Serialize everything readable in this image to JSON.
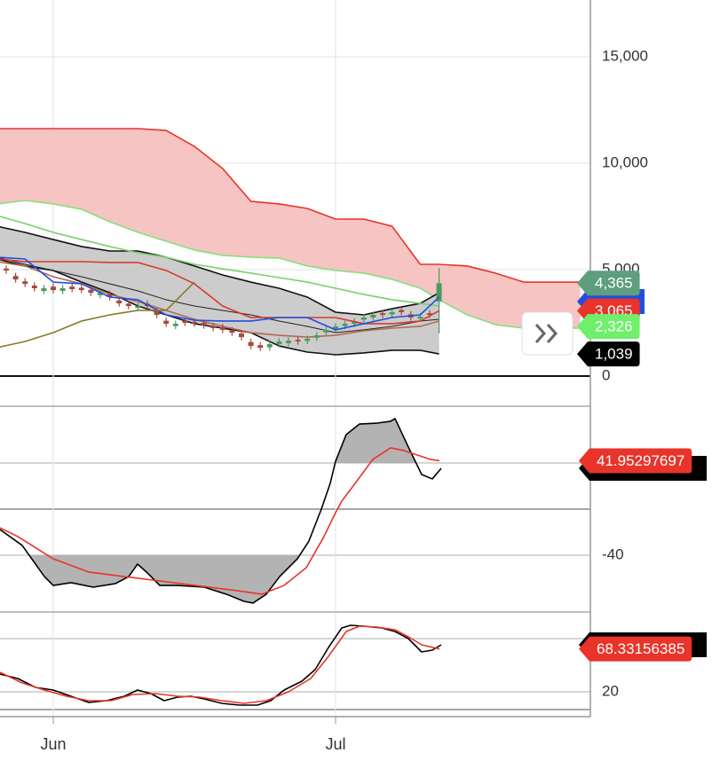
{
  "chart_data": [
    {
      "type": "candlestick",
      "xlim": [
        -5.66,
        57.08
      ],
      "ylim": [
        -1416.7,
        17666.7
      ],
      "yticks": [
        0,
        {
          "value": 5000,
          "label": "5,000"
        },
        {
          "value": 10000,
          "label": "10,000"
        },
        {
          "value": 15000,
          "label": "15,000"
        }
      ],
      "grid": true,
      "bands": [
        {
          "fill": "#f6c4c2",
          "upper": {
            "color": "#e8342a",
            "x": [
              -6,
              -3,
              0,
              3,
              6,
              9,
              12,
              15,
              18,
              21,
              24,
              27,
              30,
              33,
              36,
              39,
              41,
              44,
              47,
              50,
              53,
              56
            ],
            "values": [
              11625,
              11625,
              11625,
              11625,
              11625,
              11625,
              11540,
              10790,
              9750,
              8210,
              8085,
              7875,
              7375,
              7375,
              7040,
              5250,
              5250,
              5170,
              4835,
              4415,
              4415,
              4415
            ]
          },
          "lower": {
            "color": "#86e07a",
            "x": [
              -6,
              -3,
              0,
              3,
              6,
              9,
              12,
              15,
              18,
              21,
              24,
              27,
              30,
              33,
              36,
              39,
              41,
              44,
              47,
              50,
              53,
              56
            ],
            "values": [
              8085,
              8250,
              8085,
              7835,
              7250,
              6750,
              6335,
              5920,
              5670,
              5585,
              5540,
              5170,
              4960,
              4835,
              4540,
              4125,
              3585,
              2875,
              2415,
              2250,
              2250,
              2250
            ]
          }
        },
        {
          "fill": "#c6c6c6",
          "upper": {
            "color": "#111111",
            "x": [
              -6,
              -3,
              0,
              3,
              6,
              9,
              12,
              15,
              18,
              21,
              24,
              27,
              30,
              33,
              36,
              39,
              41
            ],
            "values": [
              7040,
              6750,
              6415,
              6085,
              5875,
              5875,
              5585,
              5170,
              4750,
              4415,
              4125,
              3710,
              3000,
              2875,
              3165,
              3415,
              3915
            ]
          },
          "lower": {
            "color": "#111111",
            "x": [
              -6,
              -3,
              0,
              3,
              6,
              9,
              12,
              15,
              18,
              21,
              24,
              27,
              30,
              33,
              36,
              39,
              41
            ],
            "values": [
              5500,
              5170,
              4960,
              4415,
              3915,
              3290,
              2875,
              2460,
              2250,
              2040,
              1415,
              1125,
              1000,
              1085,
              1210,
              1210,
              1039
            ]
          }
        }
      ],
      "series": [
        {
          "color": "#7ccf6e",
          "x": [
            -6,
            -3,
            0,
            3,
            6,
            9,
            12,
            15,
            18,
            21,
            24,
            27,
            30,
            33,
            36,
            39,
            41
          ],
          "values": [
            7540,
            7165,
            6750,
            6415,
            6085,
            5790,
            5585,
            5250,
            5040,
            4835,
            4625,
            4415,
            4125,
            3835,
            3585,
            3415,
            3290
          ]
        },
        {
          "color": "#222222",
          "x": [
            -6,
            -3,
            0,
            3,
            6,
            9,
            12,
            15,
            18,
            21,
            24,
            27,
            30,
            33,
            36,
            39,
            41
          ],
          "values": [
            5585,
            5250,
            4960,
            4665,
            4335,
            4000,
            3585,
            3290,
            3085,
            2875,
            2585,
            2335,
            2040,
            2170,
            2335,
            2585,
            2665
          ]
        },
        {
          "color": "#b36a52",
          "x": [
            -6,
            -3,
            0,
            3,
            6,
            9,
            12,
            15,
            18,
            21,
            24,
            27,
            30,
            33,
            36,
            39,
            41
          ],
          "values": [
            5375,
            5170,
            4665,
            4335,
            3835,
            3500,
            3085,
            2665,
            2335,
            2040,
            1915,
            1830,
            1915,
            2125,
            2250,
            2335,
            2585
          ]
        },
        {
          "color": "#d9382c",
          "x": [
            -6,
            -3,
            0,
            3,
            6,
            9,
            12,
            15,
            18,
            21,
            24,
            27,
            30,
            33,
            36,
            39,
            41
          ],
          "values": [
            5500,
            5375,
            5375,
            5375,
            5335,
            5335,
            4960,
            4335,
            3290,
            2750,
            2750,
            2750,
            2750,
            2460,
            2460,
            2585,
            3065
          ]
        },
        {
          "color": "#1f4fe0",
          "x": [
            -6,
            -3,
            0,
            3,
            6,
            9,
            12,
            15,
            18,
            21,
            24,
            27,
            30,
            33,
            36,
            39,
            41
          ],
          "values": [
            5585,
            5500,
            4415,
            4335,
            3710,
            3585,
            2875,
            2625,
            2585,
            2585,
            2750,
            2750,
            2170,
            2460,
            2750,
            2875,
            3710
          ]
        },
        {
          "color": "#8a7a2a",
          "x": [
            -6,
            -3,
            0,
            3,
            6,
            9,
            12,
            15
          ],
          "values": [
            1335,
            1625,
            2040,
            2585,
            2875,
            3085,
            3085,
            4415
          ]
        }
      ],
      "candles": {
        "up_color": "#4d9a5e",
        "down_color": "#a8493a",
        "x": [
          -5,
          -4,
          -3,
          -2,
          -1,
          0,
          1,
          2,
          3,
          4,
          5,
          6,
          7,
          8,
          9,
          10,
          11,
          12,
          13,
          14,
          15,
          16,
          17,
          18,
          19,
          20,
          21,
          22,
          23,
          24,
          25,
          26,
          27,
          28,
          29,
          30,
          31,
          32,
          33,
          34,
          35,
          36,
          37,
          38,
          39,
          40,
          41
        ],
        "open": [
          5050,
          4700,
          4450,
          4250,
          4000,
          4200,
          4000,
          4200,
          4150,
          4050,
          3800,
          3850,
          3550,
          3400,
          3200,
          3400,
          3050,
          2600,
          2350,
          2600,
          2550,
          2500,
          2350,
          2300,
          2150,
          2000,
          1600,
          1450,
          1350,
          1500,
          1550,
          1700,
          1650,
          1800,
          2050,
          2200,
          2350,
          2450,
          2650,
          2750,
          2950,
          2900,
          3100,
          2900,
          2700,
          2950,
          3500
        ],
        "high": [
          5200,
          4850,
          4600,
          4400,
          4275,
          4350,
          4275,
          4350,
          4300,
          4200,
          4065,
          4000,
          3700,
          3550,
          3440,
          3550,
          3200,
          2750,
          2610,
          2750,
          2700,
          2650,
          2500,
          2450,
          2300,
          2150,
          1750,
          1600,
          1650,
          1775,
          1815,
          1850,
          1900,
          2065,
          2320,
          2480,
          2610,
          2730,
          2900,
          3025,
          3100,
          3150,
          3250,
          3050,
          2940,
          3100,
          5080
        ],
        "low": [
          4810,
          4390,
          4180,
          3975,
          3850,
          3890,
          3850,
          3935,
          3890,
          3765,
          3650,
          3560,
          3265,
          3140,
          3050,
          3140,
          2725,
          2310,
          2200,
          2350,
          2310,
          2225,
          2100,
          2020,
          1890,
          1680,
          1265,
          1180,
          1200,
          1350,
          1400,
          1475,
          1500,
          1650,
          1900,
          2050,
          2200,
          2300,
          2500,
          2600,
          2725,
          2750,
          2850,
          2600,
          2550,
          2725,
          2000
        ],
        "close": [
          4960,
          4540,
          4330,
          4125,
          4125,
          4040,
          4125,
          4085,
          4040,
          3915,
          3915,
          3710,
          3415,
          3290,
          3290,
          3290,
          2875,
          2460,
          2460,
          2500,
          2460,
          2375,
          2250,
          2170,
          2040,
          1830,
          1415,
          1330,
          1500,
          1625,
          1665,
          1625,
          1750,
          1915,
          2170,
          2330,
          2460,
          2580,
          2750,
          2875,
          2875,
          3000,
          3000,
          2750,
          2790,
          2875,
          4365
        ]
      },
      "last_labels": [
        {
          "value": 3065,
          "label": "3,065",
          "color": "#e8342a"
        },
        {
          "value": 1039,
          "label": "1,039",
          "color": "#000000"
        },
        {
          "value": 4365,
          "label": "4,365",
          "color": "#5e9e7c"
        },
        {
          "value": 2326,
          "label": "2,326",
          "color": "#6ef06b"
        }
      ]
    },
    {
      "type": "line",
      "xlim": [
        -5.66,
        57.08
      ],
      "ylim": [
        -89.23,
        89.23
      ],
      "yticks": [
        -40,
        40
      ],
      "grid": true,
      "fill_beyond_ticks": "#b3b3b3",
      "series": [
        {
          "color": "#000000",
          "x": [
            -5.66,
            -3.3,
            -0.94,
            0,
            1.89,
            4.25,
            6.6,
            8.02,
            8.96,
            9.91,
            11.32,
            13.21,
            16.04,
            18.4,
            20.28,
            21.23,
            22.64,
            24.06,
            25.94,
            27.17,
            28.49,
            29.43,
            30,
            31.13,
            32.55,
            34.43,
            35.85,
            36.32,
            37.74,
            39.15,
            40.28,
            41.23
          ],
          "values": [
            -17.7,
            -31.5,
            -58.5,
            -66.2,
            -63.8,
            -67.7,
            -64.6,
            -58.5,
            -47.7,
            -54.6,
            -66.2,
            -66.2,
            -67.7,
            -73.8,
            -80,
            -81.5,
            -73.8,
            -58.5,
            -43.1,
            -27.7,
            0,
            22.3,
            41.5,
            64.6,
            73.8,
            74.6,
            76.2,
            78.5,
            53.8,
            30,
            26.2,
            35.4
          ]
        },
        {
          "color": "#e8342a",
          "x": [
            -5.66,
            -3.77,
            0,
            3.77,
            7.55,
            11.32,
            15.09,
            18.87,
            22.17,
            24.53,
            26.89,
            28.77,
            30,
            30.66,
            32.08,
            33.96,
            35.85,
            37.26,
            38.68,
            40.09,
            41.04
          ],
          "values": [
            -16.2,
            -23.8,
            -43.1,
            -54.6,
            -58.5,
            -62.3,
            -66.2,
            -70,
            -73.8,
            -66.2,
            -50.8,
            -23.8,
            -3.1,
            6.9,
            22.3,
            43.1,
            53.1,
            50.8,
            46.9,
            43.1,
            41.95297697
          ]
        }
      ],
      "last_labels": [
        {
          "value": 41.95297697,
          "color": "#e8342a"
        }
      ]
    },
    {
      "type": "line",
      "xlim": [
        -5.66,
        57.08
      ],
      "ylim": [
        -8,
        110
      ],
      "yticks": [
        20,
        80
      ],
      "xticks": [
        {
          "value": 0,
          "label": "Jun"
        },
        {
          "value": 30,
          "label": "Jul"
        }
      ],
      "grid": true,
      "series": [
        {
          "color": "#000000",
          "x": [
            -5.66,
            -3.77,
            -1.89,
            0,
            1.89,
            3.77,
            5.66,
            7.55,
            8.96,
            10.38,
            11.79,
            13.21,
            14.62,
            16.04,
            17.92,
            19.81,
            21.7,
            23.11,
            24.53,
            26.42,
            27.83,
            29.25,
            30.66,
            31.6,
            33.02,
            34.91,
            36.32,
            37.74,
            39.15,
            40.28,
            41.23
          ],
          "values": [
            40,
            35,
            25,
            22,
            15,
            8,
            10,
            15,
            22,
            18,
            10,
            14,
            15,
            12,
            7,
            5,
            5,
            10,
            22,
            32,
            45,
            70,
            92,
            95,
            94,
            92,
            88,
            80,
            65,
            67,
            73
          ]
        },
        {
          "color": "#e8342a",
          "x": [
            -5.66,
            -3.3,
            -0.94,
            1.42,
            3.77,
            6.13,
            8.49,
            10.85,
            13.21,
            15.57,
            17.92,
            20.28,
            22.64,
            25,
            27.36,
            29.25,
            31.13,
            32.55,
            34.43,
            36.32,
            37.74,
            39.15,
            41.04
          ],
          "values": [
            42,
            30,
            22,
            15,
            10,
            10,
            17,
            18,
            15,
            14,
            10,
            7,
            10,
            20,
            35,
            60,
            88,
            94,
            93,
            90,
            82,
            73,
            68.33156385
          ]
        }
      ],
      "last_labels": [
        {
          "value": 68.33156385,
          "color": "#e8342a"
        }
      ]
    }
  ]
}
